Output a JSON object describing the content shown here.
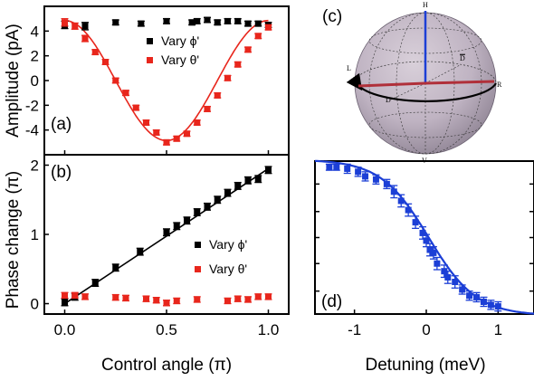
{
  "chart_data": [
    {
      "panel": "(a)",
      "type": "scatter",
      "ylabel": "Amplitude (pA)",
      "xlim": [
        -0.1,
        1.1
      ],
      "ylim": [
        -6,
        6
      ],
      "yticks": [
        "4",
        "2",
        "0",
        "-2",
        "-4"
      ],
      "ytick_values": [
        4,
        2,
        0,
        -2,
        -4
      ],
      "legend": [
        "Vary ϕ'",
        "Vary θ'"
      ],
      "series": [
        {
          "name": "Vary ϕ'",
          "color": "#000000",
          "x": [
            0.0,
            0.1,
            0.25,
            0.375,
            0.5,
            0.625,
            0.65,
            0.7,
            0.75,
            0.8,
            0.85,
            0.9,
            0.95,
            1.0
          ],
          "y": [
            4.5,
            4.4,
            4.7,
            4.6,
            4.8,
            4.7,
            4.8,
            4.9,
            4.7,
            4.8,
            4.8,
            4.6,
            4.6,
            4.5
          ],
          "err": [
            0.3,
            0.3,
            0.2,
            0.2,
            0.2,
            0.2,
            0.2,
            0.2,
            0.2,
            0.2,
            0.2,
            0.2,
            0.2,
            0.2
          ]
        },
        {
          "name": "Vary θ'",
          "color": "#e8261c",
          "x": [
            0.0,
            0.05,
            0.1,
            0.15,
            0.2,
            0.25,
            0.3,
            0.35,
            0.4,
            0.45,
            0.5,
            0.55,
            0.6,
            0.65,
            0.7,
            0.75,
            0.8,
            0.85,
            0.9,
            0.95,
            1.0
          ],
          "y": [
            4.7,
            4.4,
            3.4,
            2.3,
            1.5,
            0.0,
            -1.0,
            -2.2,
            -3.4,
            -4.2,
            -5.0,
            -4.7,
            -4.3,
            -3.4,
            -2.3,
            -1.2,
            0.2,
            1.3,
            2.5,
            3.6,
            4.3
          ],
          "err": [
            0.3,
            0.25,
            0.25,
            0.2,
            0.2,
            0.2,
            0.2,
            0.2,
            0.2,
            0.2,
            0.2,
            0.2,
            0.2,
            0.2,
            0.2,
            0.2,
            0.2,
            0.2,
            0.2,
            0.2,
            0.2
          ]
        }
      ]
    },
    {
      "panel": "(b)",
      "type": "scatter",
      "ylabel": "Phase change (π)",
      "xlabel": "Control angle (π)",
      "xlim": [
        -0.1,
        1.1
      ],
      "ylim": [
        -0.15,
        2.15
      ],
      "xticks": [
        "0.0",
        "0.5",
        "1.0"
      ],
      "xtick_values": [
        0.0,
        0.5,
        1.0
      ],
      "yticks": [
        "0",
        "1",
        "2"
      ],
      "ytick_values": [
        0,
        1,
        2
      ],
      "legend": [
        "Vary ϕ'",
        "Vary θ'"
      ],
      "series": [
        {
          "name": "Vary ϕ'",
          "color": "#000000",
          "x": [
            0.0,
            0.05,
            0.15,
            0.25,
            0.37,
            0.5,
            0.55,
            0.6,
            0.65,
            0.7,
            0.75,
            0.8,
            0.85,
            0.9,
            0.95,
            1.0
          ],
          "y": [
            0.02,
            0.1,
            0.3,
            0.52,
            0.75,
            1.03,
            1.12,
            1.2,
            1.32,
            1.4,
            1.5,
            1.6,
            1.7,
            1.78,
            1.8,
            1.93
          ],
          "err": [
            0.05,
            0.05,
            0.05,
            0.05,
            0.05,
            0.05,
            0.05,
            0.05,
            0.05,
            0.05,
            0.05,
            0.05,
            0.05,
            0.05,
            0.05,
            0.05
          ]
        },
        {
          "name": "Vary θ'",
          "color": "#e8261c",
          "x": [
            0.0,
            0.05,
            0.1,
            0.25,
            0.3,
            0.4,
            0.45,
            0.5,
            0.55,
            0.65,
            0.8,
            0.85,
            0.9,
            0.95,
            1.0
          ],
          "y": [
            0.12,
            0.12,
            0.1,
            0.09,
            0.08,
            0.07,
            0.05,
            0.01,
            0.04,
            0.06,
            0.04,
            0.07,
            0.06,
            0.1,
            0.1
          ],
          "err": [
            0.04,
            0.04,
            0.04,
            0.04,
            0.04,
            0.04,
            0.04,
            0.04,
            0.04,
            0.04,
            0.04,
            0.04,
            0.04,
            0.04,
            0.04
          ]
        }
      ]
    },
    {
      "panel": "(d)",
      "type": "scatter",
      "xlabel": "Detuning (meV)",
      "xlim": [
        -1.55,
        1.5
      ],
      "ylim": [
        0,
        1
      ],
      "xticks": [
        "-1",
        "0",
        "1"
      ],
      "xtick_values": [
        -1,
        0,
        1
      ],
      "series": [
        {
          "name": "",
          "color": "#1c3fd6",
          "x": [
            -1.35,
            -1.25,
            -1.1,
            -0.95,
            -0.85,
            -0.7,
            -0.55,
            -0.45,
            -0.35,
            -0.25,
            -0.15,
            -0.05,
            0.0,
            0.05,
            0.1,
            0.15,
            0.25,
            0.3,
            0.4,
            0.5,
            0.6,
            0.7,
            0.8,
            0.9,
            1.0
          ],
          "y": [
            0.96,
            0.96,
            0.95,
            0.93,
            0.9,
            0.88,
            0.85,
            0.8,
            0.74,
            0.68,
            0.6,
            0.53,
            0.48,
            0.42,
            0.4,
            0.33,
            0.28,
            0.24,
            0.21,
            0.16,
            0.12,
            0.11,
            0.08,
            0.06,
            0.05
          ],
          "err": [
            0.02,
            0.02,
            0.03,
            0.03,
            0.03,
            0.03,
            0.03,
            0.04,
            0.04,
            0.04,
            0.04,
            0.04,
            0.04,
            0.04,
            0.04,
            0.04,
            0.04,
            0.04,
            0.04,
            0.03,
            0.03,
            0.03,
            0.03,
            0.03,
            0.03
          ]
        }
      ]
    }
  ],
  "sphere": {
    "panel": "(c)",
    "labels": {
      "h": "H",
      "v": "V",
      "l": "L",
      "r": "R",
      "d": "D",
      "dbar": "D"
    }
  }
}
